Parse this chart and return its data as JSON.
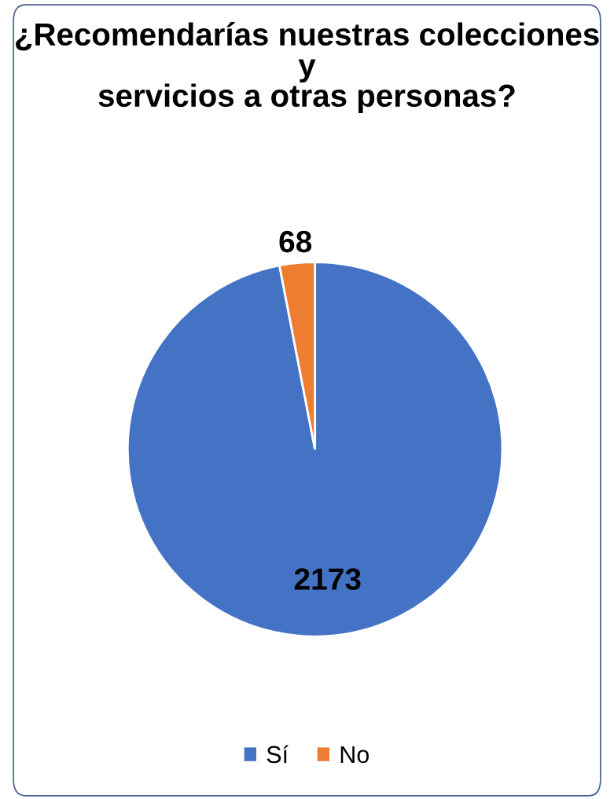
{
  "chart_data": {
    "type": "pie",
    "title": "¿Recomendarías nuestras colecciones y servicios a otras personas?",
    "categories": [
      "Sí",
      "No"
    ],
    "values": [
      2173,
      68
    ],
    "colors": [
      "#4472c4",
      "#ed7d31"
    ],
    "data_labels": true,
    "legend": "bottom"
  }
}
